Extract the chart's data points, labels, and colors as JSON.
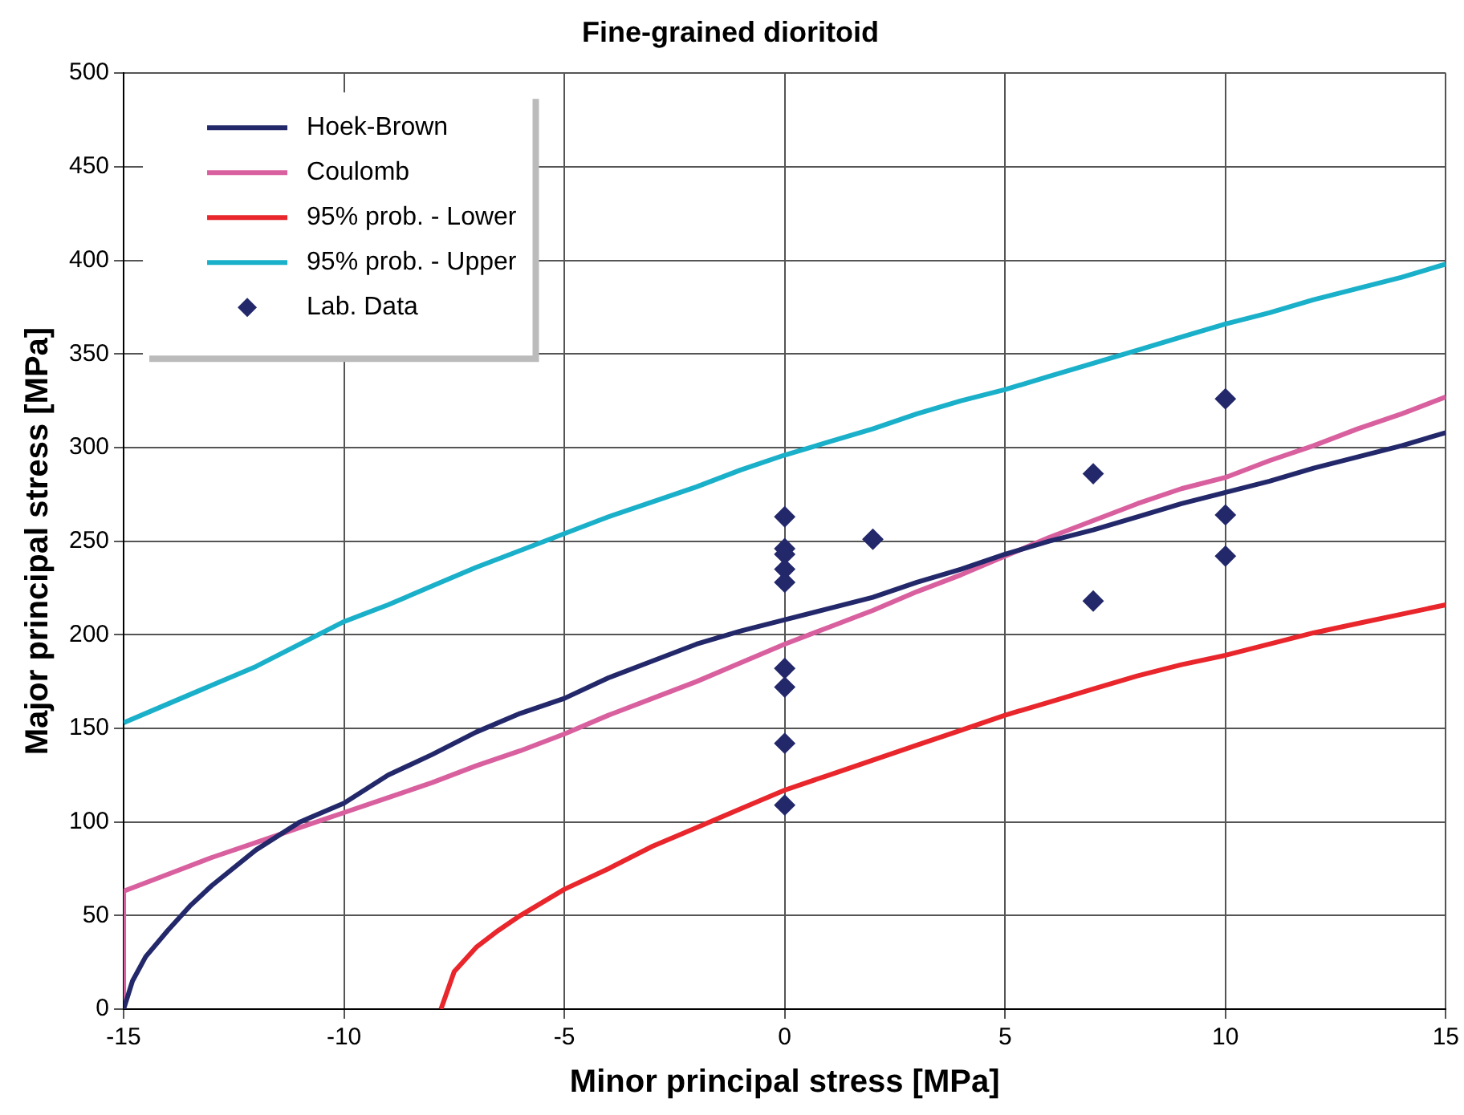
{
  "chart_data": {
    "type": "line",
    "title": "Fine-grained dioritoid",
    "xlabel": "Minor principal stress [MPa]",
    "ylabel": "Major principal stress [MPa]",
    "xlim": [
      -15,
      15
    ],
    "xticks": [
      -15,
      -10,
      -5,
      0,
      5,
      10,
      15
    ],
    "ylim": [
      0,
      500
    ],
    "yticks": [
      0,
      50,
      100,
      150,
      200,
      250,
      300,
      350,
      400,
      450,
      500
    ],
    "grid": true,
    "legend": "top left",
    "line_style": "solid",
    "series": [
      {
        "name": "Hoek-Brown",
        "color": "#23286b",
        "marker": "none",
        "x": [
          -15,
          -14.8,
          -14.5,
          -14,
          -13.5,
          -13,
          -12,
          -11,
          -10,
          -9,
          -8,
          -7,
          -6,
          -5,
          -4,
          -3,
          -2,
          -1,
          0,
          1,
          2,
          3,
          4,
          5,
          6,
          7,
          8,
          9,
          10,
          11,
          12,
          13,
          14,
          15
        ],
        "values": [
          0,
          15,
          28,
          42,
          55,
          66,
          85,
          100,
          110,
          125,
          136,
          148,
          158,
          166,
          177,
          186,
          195,
          202,
          208,
          214,
          220,
          228,
          235,
          243,
          250,
          256,
          263,
          270,
          276,
          282,
          289,
          295,
          301,
          308
        ]
      },
      {
        "name": "Coulomb",
        "color": "#d9609f",
        "marker": "none",
        "x": [
          -15,
          -15,
          -14,
          -13,
          -12,
          -11,
          -10,
          -9,
          -8,
          -7,
          -6,
          -5,
          -4,
          -3,
          -2,
          -1,
          0,
          1,
          2,
          3,
          4,
          5,
          6,
          7,
          8,
          9,
          10,
          11,
          12,
          13,
          14,
          15
        ],
        "values": [
          0,
          63,
          72,
          81,
          89,
          97,
          105,
          113,
          121,
          130,
          138,
          147,
          157,
          166,
          175,
          185,
          195,
          204,
          213,
          223,
          232,
          242,
          252,
          261,
          270,
          278,
          284,
          293,
          301,
          310,
          318,
          327
        ]
      },
      {
        "name": "95% prob. - Lower",
        "color": "#e8262c",
        "marker": "none",
        "x": [
          -7.8,
          -7.5,
          -7,
          -6.5,
          -6,
          -5,
          -4,
          -3,
          -2,
          -1,
          0,
          1,
          2,
          3,
          4,
          5,
          6,
          7,
          8,
          9,
          10,
          11,
          12,
          13,
          14,
          15
        ],
        "values": [
          0,
          20,
          33,
          42,
          50,
          64,
          75,
          87,
          97,
          107,
          117,
          125,
          133,
          141,
          149,
          157,
          164,
          171,
          178,
          184,
          189,
          195,
          201,
          206,
          211,
          216
        ]
      },
      {
        "name": "95% prob. - Upper",
        "color": "#1ab0c9",
        "marker": "none",
        "x": [
          -15,
          -14,
          -13,
          -12,
          -11,
          -10,
          -9,
          -8,
          -7,
          -6,
          -5,
          -4,
          -3,
          -2,
          -1,
          0,
          1,
          2,
          3,
          4,
          5,
          6,
          7,
          8,
          9,
          10,
          11,
          12,
          13,
          14,
          15
        ],
        "values": [
          153,
          163,
          173,
          183,
          195,
          207,
          216,
          226,
          236,
          245,
          254,
          263,
          271,
          279,
          288,
          296,
          303,
          310,
          318,
          325,
          331,
          338,
          345,
          352,
          359,
          366,
          372,
          379,
          385,
          391,
          398
        ]
      },
      {
        "name": "Lab. Data",
        "color": "#23286b",
        "type": "scatter",
        "marker": "diamond",
        "x": [
          0,
          0,
          0,
          0,
          0,
          0,
          0,
          0,
          0,
          2,
          7,
          7,
          10,
          10,
          10
        ],
        "values": [
          263,
          246,
          243,
          235,
          228,
          182,
          172,
          142,
          109,
          251,
          286,
          218,
          326,
          264,
          242
        ]
      }
    ]
  }
}
